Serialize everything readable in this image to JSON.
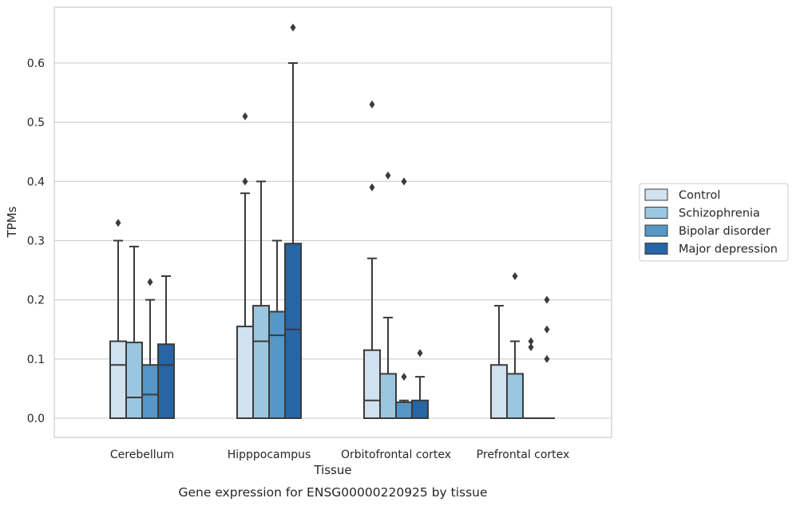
{
  "caption": "Gene expression for ENSG00000220925 by tissue",
  "chart_data": {
    "type": "box",
    "xlabel": "Tissue",
    "ylabel": "TPMs",
    "ylim": [
      -0.033,
      0.695
    ],
    "yticks": [
      0.0,
      0.1,
      0.2,
      0.3,
      0.4,
      0.5,
      0.6
    ],
    "ytick_labels": [
      "0.0",
      "0.1",
      "0.2",
      "0.3",
      "0.4",
      "0.5",
      "0.6"
    ],
    "grid": "horizontal",
    "legend_position": "right",
    "categories": [
      "Cerebellum",
      "Hipppocampus",
      "Orbitofrontal cortex",
      "Prefrontal cortex"
    ],
    "series": [
      {
        "name": "Control",
        "color": "#d0e1f0",
        "boxes": [
          {
            "q1": 0.0,
            "median": 0.09,
            "q3": 0.13,
            "whisker_low": 0.0,
            "whisker_high": 0.3,
            "outliers": [
              0.33
            ]
          },
          {
            "q1": 0.0,
            "median": 0.0,
            "q3": 0.155,
            "whisker_low": 0.0,
            "whisker_high": 0.38,
            "outliers": [
              0.4,
              0.51
            ]
          },
          {
            "q1": 0.0,
            "median": 0.03,
            "q3": 0.115,
            "whisker_low": 0.0,
            "whisker_high": 0.27,
            "outliers": [
              0.39,
              0.53
            ]
          },
          {
            "q1": 0.0,
            "median": 0.0,
            "q3": 0.09,
            "whisker_low": 0.0,
            "whisker_high": 0.19,
            "outliers": []
          }
        ]
      },
      {
        "name": "Schizophrenia",
        "color": "#9ac7df",
        "boxes": [
          {
            "q1": 0.0,
            "median": 0.035,
            "q3": 0.128,
            "whisker_low": 0.0,
            "whisker_high": 0.29,
            "outliers": []
          },
          {
            "q1": 0.0,
            "median": 0.13,
            "q3": 0.19,
            "whisker_low": 0.0,
            "whisker_high": 0.4,
            "outliers": []
          },
          {
            "q1": 0.0,
            "median": 0.0,
            "q3": 0.075,
            "whisker_low": 0.0,
            "whisker_high": 0.17,
            "outliers": [
              0.41
            ]
          },
          {
            "q1": 0.0,
            "median": 0.0,
            "q3": 0.075,
            "whisker_low": 0.0,
            "whisker_high": 0.13,
            "outliers": [
              0.24
            ]
          }
        ]
      },
      {
        "name": "Bipolar disorder",
        "color": "#5597c6",
        "boxes": [
          {
            "q1": 0.0,
            "median": 0.04,
            "q3": 0.09,
            "whisker_low": 0.0,
            "whisker_high": 0.2,
            "outliers": [
              0.23
            ]
          },
          {
            "q1": 0.0,
            "median": 0.14,
            "q3": 0.18,
            "whisker_low": 0.0,
            "whisker_high": 0.3,
            "outliers": []
          },
          {
            "q1": 0.0,
            "median": 0.0,
            "q3": 0.027,
            "whisker_low": 0.0,
            "whisker_high": 0.03,
            "outliers": [
              0.07,
              0.4
            ]
          },
          {
            "q1": 0.0,
            "median": 0.0,
            "q3": 0.0,
            "whisker_low": 0.0,
            "whisker_high": 0.0,
            "outliers": [
              0.12,
              0.13
            ]
          }
        ]
      },
      {
        "name": "Major depression",
        "color": "#2765a5",
        "boxes": [
          {
            "q1": 0.0,
            "median": 0.09,
            "q3": 0.125,
            "whisker_low": 0.0,
            "whisker_high": 0.24,
            "outliers": []
          },
          {
            "q1": 0.0,
            "median": 0.15,
            "q3": 0.295,
            "whisker_low": 0.0,
            "whisker_high": 0.6,
            "outliers": [
              0.66
            ]
          },
          {
            "q1": 0.0,
            "median": 0.0,
            "q3": 0.03,
            "whisker_low": 0.0,
            "whisker_high": 0.07,
            "outliers": [
              0.11
            ]
          },
          {
            "q1": 0.0,
            "median": 0.0,
            "q3": 0.0,
            "whisker_low": 0.0,
            "whisker_high": 0.0,
            "outliers": [
              0.1,
              0.15,
              0.2
            ]
          }
        ]
      }
    ]
  }
}
